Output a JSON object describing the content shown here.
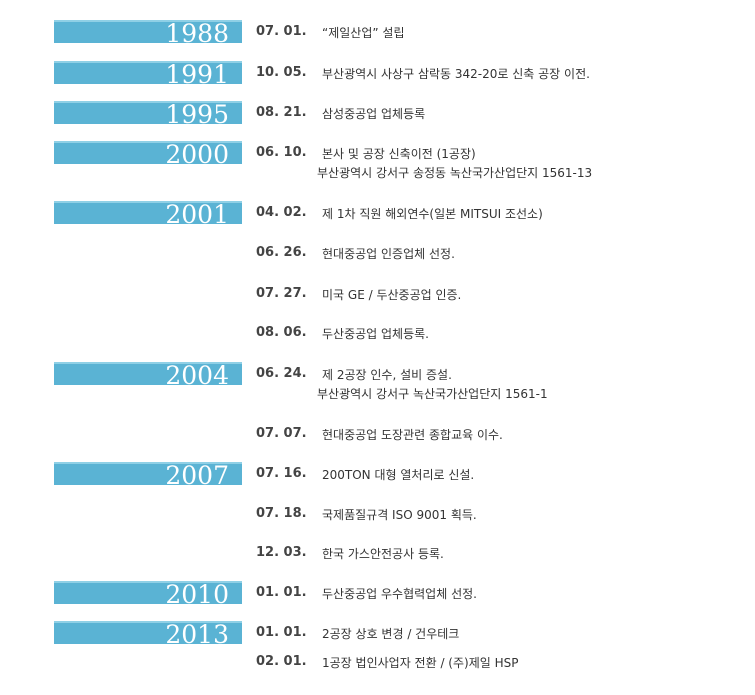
{
  "history": [
    {
      "year": "1988",
      "entries": [
        {
          "date": "07. 01.",
          "lines": [
            "“제일산업”  설립"
          ]
        }
      ]
    },
    {
      "year": "1991",
      "entries": [
        {
          "date": "10. 05.",
          "lines": [
            "부산광역시 사상구 삼락동 342-20로 신축 공장 이전."
          ]
        }
      ]
    },
    {
      "year": "1995",
      "entries": [
        {
          "date": "08. 21.",
          "lines": [
            "삼성중공업 업체등록"
          ]
        }
      ]
    },
    {
      "year": "2000",
      "entries": [
        {
          "date": "06. 10.",
          "lines": [
            "본사 및 공장 신축이전 (1공장)",
            "부산광역시 강서구 송정동 녹산국가산업단지 1561-13"
          ]
        }
      ]
    },
    {
      "year": "2001",
      "entries": [
        {
          "date": "04. 02.",
          "lines": [
            "제 1차 직원 해외연수(일본 MITSUI 조선소)"
          ]
        },
        {
          "date": "06. 26.",
          "lines": [
            "현대중공업 인증업체 선정."
          ]
        },
        {
          "date": "07. 27.",
          "lines": [
            "미국 GE / 두산중공업 인증."
          ]
        },
        {
          "date": "08. 06.",
          "lines": [
            "두산중공업 업체등록."
          ]
        }
      ]
    },
    {
      "year": "2004",
      "entries": [
        {
          "date": "06. 24.",
          "lines": [
            "제 2공장 인수, 설비 증설.",
            "부산광역시 강서구 녹산국가산업단지 1561-1"
          ]
        },
        {
          "date": "07. 07.",
          "lines": [
            "현대중공업 도장관련 종합교육 이수."
          ]
        }
      ]
    },
    {
      "year": "2007",
      "entries": [
        {
          "date": "07. 16.",
          "lines": [
            "200TON 대형 열처리로 신설."
          ]
        },
        {
          "date": "07. 18.",
          "lines": [
            "국제품질규격 ISO 9001 획득."
          ]
        },
        {
          "date": "12. 03.",
          "lines": [
            "한국 가스안전공사 등록."
          ]
        }
      ]
    },
    {
      "year": "2010",
      "entries": [
        {
          "date": "01. 01.",
          "lines": [
            "두산중공업 우수협력업체 선정."
          ]
        }
      ]
    },
    {
      "year": "2013",
      "entries": [
        {
          "date": "01. 01.",
          "lines": [
            "2공장 상호 변경 / 건우테크"
          ]
        },
        {
          "date": "02. 01.",
          "lines": [
            "1공장 법인사업자 전환 / (주)제일 HSP"
          ]
        }
      ]
    }
  ]
}
